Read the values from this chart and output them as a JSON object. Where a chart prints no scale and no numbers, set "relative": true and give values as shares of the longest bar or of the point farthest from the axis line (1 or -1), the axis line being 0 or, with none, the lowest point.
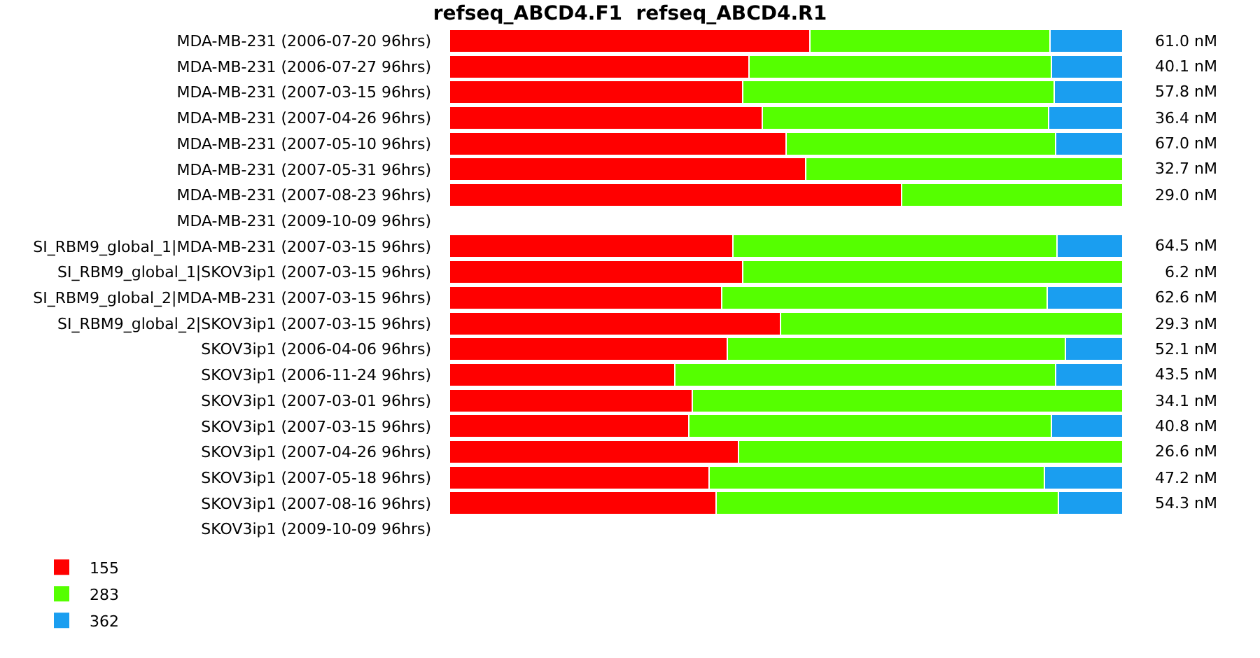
{
  "chart_data": {
    "type": "bar",
    "orientation": "horizontal",
    "stacked": true,
    "relative": true,
    "title": "refseq_ABCD4.F1  refseq_ABCD4.R1",
    "categories": [
      "MDA-MB-231 (2006-07-20 96hrs)",
      "MDA-MB-231 (2006-07-27 96hrs)",
      "MDA-MB-231 (2007-03-15 96hrs)",
      "MDA-MB-231 (2007-04-26 96hrs)",
      "MDA-MB-231 (2007-05-10 96hrs)",
      "MDA-MB-231 (2007-05-31 96hrs)",
      "MDA-MB-231 (2007-08-23 96hrs)",
      "MDA-MB-231 (2009-10-09 96hrs)",
      "SI_RBM9_global_1|MDA-MB-231 (2007-03-15 96hrs)",
      "SI_RBM9_global_1|SKOV3ip1 (2007-03-15 96hrs)",
      "SI_RBM9_global_2|MDA-MB-231 (2007-03-15 96hrs)",
      "SI_RBM9_global_2|SKOV3ip1 (2007-03-15 96hrs)",
      "SKOV3ip1 (2006-04-06 96hrs)",
      "SKOV3ip1 (2006-11-24 96hrs)",
      "SKOV3ip1 (2007-03-01 96hrs)",
      "SKOV3ip1 (2007-03-15 96hrs)",
      "SKOV3ip1 (2007-04-26 96hrs)",
      "SKOV3ip1 (2007-05-18 96hrs)",
      "SKOV3ip1 (2007-08-16 96hrs)",
      "SKOV3ip1 (2009-10-09 96hrs)"
    ],
    "y2_categories": [
      "61.0 nM",
      "40.1 nM",
      "57.8 nM",
      "36.4 nM",
      "67.0 nM",
      "32.7 nM",
      "29.0 nM",
      null,
      "64.5 nM",
      "6.2 nM",
      "62.6 nM",
      "29.3 nM",
      "52.1 nM",
      "43.5 nM",
      "34.1 nM",
      "40.8 nM",
      "26.6 nM",
      "47.2 nM",
      "54.3 nM",
      null
    ],
    "series": [
      {
        "name": "155",
        "color": "#ff0000",
        "values": [
          0.535,
          0.445,
          0.436,
          0.465,
          0.5,
          0.529,
          0.671,
          null,
          0.421,
          0.436,
          0.404,
          0.492,
          0.413,
          0.335,
          0.361,
          0.355,
          0.429,
          0.386,
          0.396,
          null
        ]
      },
      {
        "name": "283",
        "color": "#55ff00",
        "values": [
          0.357,
          0.449,
          0.462,
          0.425,
          0.4,
          0.471,
          0.329,
          null,
          0.481,
          0.564,
          0.484,
          0.508,
          0.502,
          0.565,
          0.639,
          0.539,
          0.571,
          0.498,
          0.508,
          null
        ]
      },
      {
        "name": "362",
        "color": "#1a9ef0",
        "values": [
          0.108,
          0.106,
          0.102,
          0.11,
          0.1,
          null,
          null,
          null,
          0.098,
          null,
          0.112,
          null,
          0.085,
          0.1,
          null,
          0.106,
          null,
          0.116,
          0.096,
          null
        ]
      }
    ],
    "legend": "bottom left"
  }
}
